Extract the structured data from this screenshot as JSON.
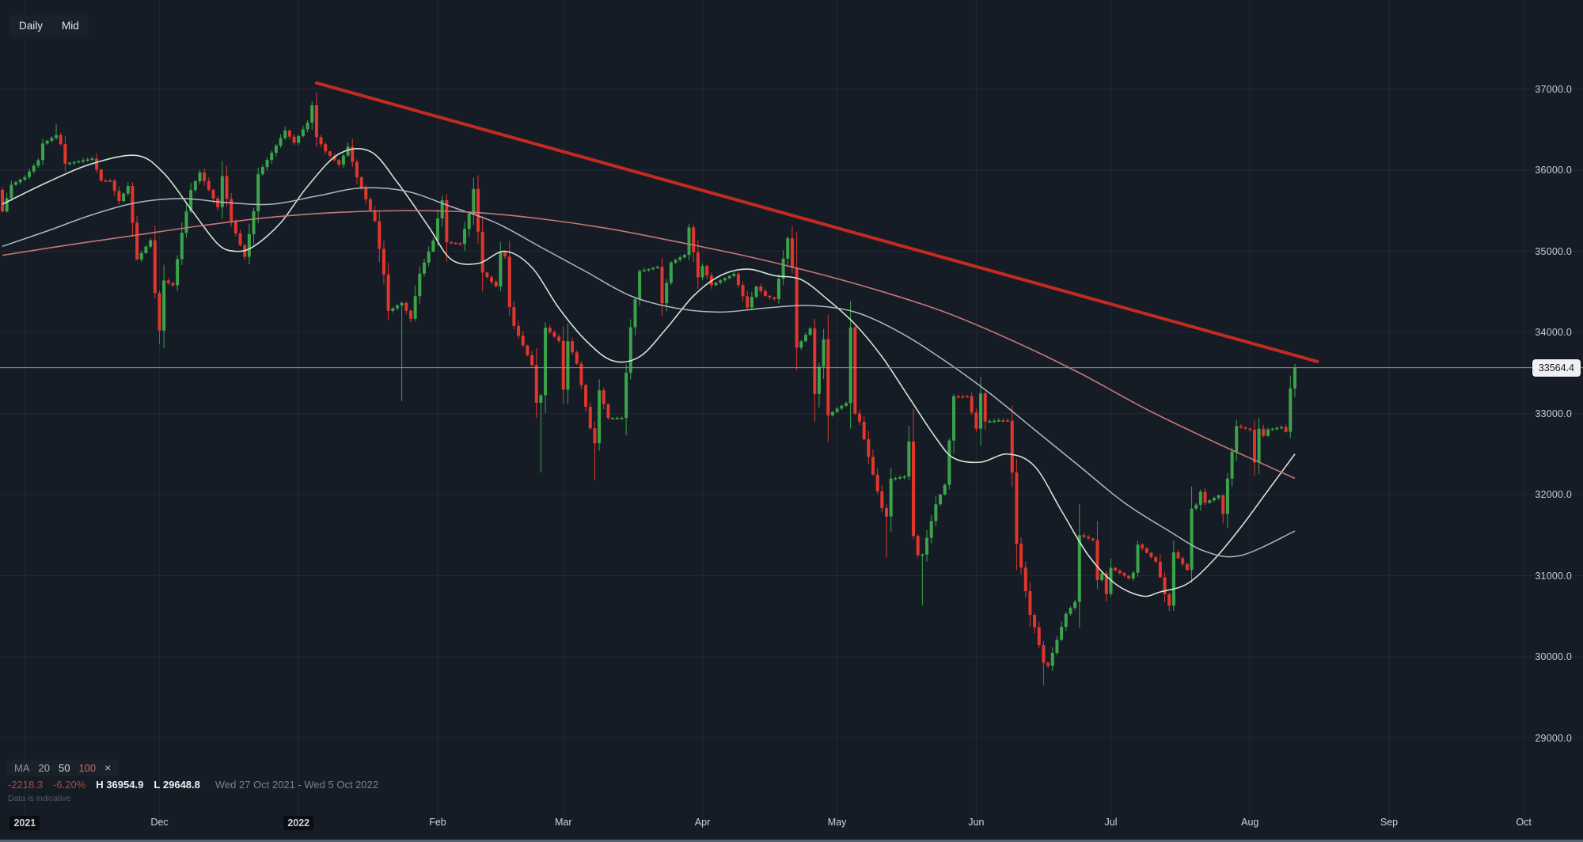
{
  "toolbar": {
    "timeframe": "Daily",
    "price_type": "Mid"
  },
  "legend": {
    "indicator": "MA",
    "periods": [
      {
        "label": "20",
        "color": "#9fbf9f"
      },
      {
        "label": "50",
        "color": "#d9dde2"
      },
      {
        "label": "100",
        "color": "#cb6a62"
      }
    ],
    "close_label": "×"
  },
  "stats": {
    "change": "-2218.3",
    "change_pct": "-6.20%",
    "high_label": "H",
    "high_value": "36954.9",
    "low_label": "L",
    "low_value": "29648.8",
    "date_range": "Wed 27 Oct 2021 - Wed 5 Oct 2022"
  },
  "disclaimer": "Data is indicative",
  "price_axis": {
    "ticks": [
      {
        "label": "37000.0",
        "value": 37000
      },
      {
        "label": "36000.0",
        "value": 36000
      },
      {
        "label": "35000.0",
        "value": 35000
      },
      {
        "label": "34000.0",
        "value": 34000
      },
      {
        "label": "33000.0",
        "value": 33000
      },
      {
        "label": "32000.0",
        "value": 32000
      },
      {
        "label": "31000.0",
        "value": 31000
      },
      {
        "label": "30000.0",
        "value": 30000
      },
      {
        "label": "29000.0",
        "value": 29000
      }
    ],
    "current": {
      "value": 33564.4,
      "label": "33564.4"
    }
  },
  "time_axis": {
    "ticks": [
      {
        "label": "2021",
        "day": 5,
        "year": true
      },
      {
        "label": "Dec",
        "day": 35
      },
      {
        "label": "2022",
        "day": 66,
        "year": true
      },
      {
        "label": "Feb",
        "day": 97
      },
      {
        "label": "Mar",
        "day": 125
      },
      {
        "label": "Apr",
        "day": 156
      },
      {
        "label": "May",
        "day": 186
      },
      {
        "label": "Jun",
        "day": 217
      },
      {
        "label": "Jul",
        "day": 247
      },
      {
        "label": "Aug",
        "day": 278
      },
      {
        "label": "Sep",
        "day": 309
      },
      {
        "label": "Oct",
        "day": 339
      }
    ]
  },
  "chart_data": {
    "type": "candlestick",
    "title": "Wall Street daily candlestick chart",
    "period_shown": "Wed 27 Oct 2021 - Wed 5 Oct 2022",
    "day0_date": "2021-10-27",
    "last_close": 33564.4,
    "session_high": 36954.9,
    "session_low": 29648.8,
    "first_open": 35757,
    "candle_days": 289,
    "price_path": [
      [
        0,
        35491
      ],
      [
        2,
        35820
      ],
      [
        5,
        35914
      ],
      [
        8,
        36124
      ],
      [
        9,
        36328
      ],
      [
        12,
        36432
      ],
      [
        13,
        36320
      ],
      [
        14,
        36080
      ],
      [
        16,
        36100
      ],
      [
        20,
        36142
      ],
      [
        22,
        35871
      ],
      [
        24,
        35870
      ],
      [
        26,
        35619
      ],
      [
        28,
        35804
      ],
      [
        30,
        34899
      ],
      [
        33,
        35136
      ],
      [
        34,
        34484
      ],
      [
        35,
        34022
      ],
      [
        36,
        34640
      ],
      [
        38,
        34580
      ],
      [
        40,
        35227
      ],
      [
        42,
        35755
      ],
      [
        44,
        35971
      ],
      [
        47,
        35651
      ],
      [
        48,
        35544
      ],
      [
        49,
        35927
      ],
      [
        51,
        35365
      ],
      [
        54,
        34932
      ],
      [
        56,
        35493
      ],
      [
        57,
        35950
      ],
      [
        61,
        36302
      ],
      [
        63,
        36488
      ],
      [
        65,
        36338
      ],
      [
        68,
        36586
      ],
      [
        69,
        36800
      ],
      [
        70,
        36407
      ],
      [
        72,
        36232
      ],
      [
        75,
        36069
      ],
      [
        77,
        36290
      ],
      [
        79,
        35912
      ],
      [
        83,
        35369
      ],
      [
        84,
        35029
      ],
      [
        85,
        34715
      ],
      [
        86,
        34265
      ],
      [
        89,
        34364
      ],
      [
        91,
        34168
      ],
      [
        93,
        34725
      ],
      [
        96,
        35132
      ],
      [
        97,
        35405
      ],
      [
        98,
        35629
      ],
      [
        99,
        35111
      ],
      [
        102,
        35090
      ],
      [
        104,
        35462
      ],
      [
        105,
        35768
      ],
      [
        106,
        35241
      ],
      [
        107,
        34738
      ],
      [
        110,
        34566
      ],
      [
        111,
        34989
      ],
      [
        112,
        34934
      ],
      [
        113,
        34312
      ],
      [
        114,
        34079
      ],
      [
        118,
        33597
      ],
      [
        119,
        33131
      ],
      [
        120,
        33224
      ],
      [
        121,
        34058
      ],
      [
        124,
        33893
      ],
      [
        125,
        33294
      ],
      [
        126,
        33891
      ],
      [
        128,
        33615
      ],
      [
        131,
        32817
      ],
      [
        132,
        32632
      ],
      [
        133,
        33286
      ],
      [
        135,
        32944
      ],
      [
        138,
        32945
      ],
      [
        140,
        34063
      ],
      [
        142,
        34755
      ],
      [
        146,
        34807
      ],
      [
        147,
        34358
      ],
      [
        149,
        34861
      ],
      [
        152,
        34956
      ],
      [
        153,
        35294
      ],
      [
        155,
        34678
      ],
      [
        156,
        34818
      ],
      [
        158,
        34583
      ],
      [
        160,
        34641
      ],
      [
        163,
        34721
      ],
      [
        166,
        34308
      ],
      [
        168,
        34565
      ],
      [
        170,
        34451
      ],
      [
        172,
        34411
      ],
      [
        175,
        35160
      ],
      [
        176,
        34793
      ],
      [
        177,
        33811
      ],
      [
        180,
        34049
      ],
      [
        181,
        33240
      ],
      [
        183,
        33916
      ],
      [
        184,
        32977
      ],
      [
        186,
        33061
      ],
      [
        188,
        33128
      ],
      [
        189,
        34061
      ],
      [
        190,
        32998
      ],
      [
        191,
        32899
      ],
      [
        194,
        32246
      ],
      [
        196,
        31834
      ],
      [
        197,
        31730
      ],
      [
        198,
        32197
      ],
      [
        201,
        32223
      ],
      [
        202,
        32654
      ],
      [
        203,
        31490
      ],
      [
        204,
        31253
      ],
      [
        205,
        31261
      ],
      [
        208,
        31880
      ],
      [
        210,
        32120
      ],
      [
        212,
        33213
      ],
      [
        215,
        33212
      ],
      [
        217,
        32813
      ],
      [
        218,
        33248
      ],
      [
        219,
        32900
      ],
      [
        222,
        32916
      ],
      [
        224,
        32911
      ],
      [
        225,
        32272
      ],
      [
        226,
        31393
      ],
      [
        229,
        30517
      ],
      [
        230,
        30365
      ],
      [
        232,
        29927
      ],
      [
        233,
        29889
      ],
      [
        237,
        30530
      ],
      [
        239,
        30677
      ],
      [
        240,
        31500
      ],
      [
        243,
        31438
      ],
      [
        244,
        30946
      ],
      [
        245,
        31029
      ],
      [
        246,
        30775
      ],
      [
        247,
        31097
      ],
      [
        251,
        30967
      ],
      [
        252,
        31037
      ],
      [
        253,
        31384
      ],
      [
        254,
        31338
      ],
      [
        257,
        31173
      ],
      [
        258,
        30981
      ],
      [
        259,
        30772
      ],
      [
        260,
        30630
      ],
      [
        261,
        31288
      ],
      [
        264,
        31072
      ],
      [
        265,
        31827
      ],
      [
        266,
        31875
      ],
      [
        267,
        32036
      ],
      [
        268,
        31899
      ],
      [
        271,
        31990
      ],
      [
        272,
        31761
      ],
      [
        273,
        32197
      ],
      [
        274,
        32529
      ],
      [
        275,
        32845
      ],
      [
        278,
        32798
      ],
      [
        279,
        32396
      ],
      [
        280,
        32812
      ],
      [
        281,
        32726
      ],
      [
        282,
        32803
      ],
      [
        285,
        32832
      ],
      [
        286,
        32774
      ],
      [
        287,
        33309
      ],
      [
        288,
        33564.4
      ]
    ],
    "wick_overrides": [
      {
        "day": 12,
        "high": 36565
      },
      {
        "day": 70,
        "high": 36954.9
      },
      {
        "day": 89,
        "low": 33150
      },
      {
        "day": 120,
        "low": 32272
      },
      {
        "day": 132,
        "low": 32174
      },
      {
        "day": 197,
        "low": 31228
      },
      {
        "day": 205,
        "low": 30635
      },
      {
        "day": 232,
        "low": 29648.8
      },
      {
        "day": 288,
        "high": 33610
      }
    ],
    "moving_averages": [
      {
        "period": 20,
        "color": "#d4e4d6",
        "width": 1.6,
        "points": [
          [
            0,
            35580
          ],
          [
            10,
            35850
          ],
          [
            20,
            36080
          ],
          [
            30,
            36180
          ],
          [
            36,
            35960
          ],
          [
            42,
            35520
          ],
          [
            48,
            35090
          ],
          [
            52,
            35000
          ],
          [
            56,
            35060
          ],
          [
            62,
            35350
          ],
          [
            68,
            35800
          ],
          [
            75,
            36200
          ],
          [
            82,
            36230
          ],
          [
            88,
            35850
          ],
          [
            95,
            35300
          ],
          [
            100,
            34900
          ],
          [
            106,
            34850
          ],
          [
            112,
            35000
          ],
          [
            118,
            34800
          ],
          [
            124,
            34300
          ],
          [
            130,
            33900
          ],
          [
            136,
            33650
          ],
          [
            142,
            33700
          ],
          [
            148,
            34050
          ],
          [
            154,
            34450
          ],
          [
            160,
            34700
          ],
          [
            166,
            34780
          ],
          [
            172,
            34700
          ],
          [
            178,
            34650
          ],
          [
            184,
            34400
          ],
          [
            190,
            34100
          ],
          [
            196,
            33700
          ],
          [
            202,
            33200
          ],
          [
            208,
            32700
          ],
          [
            212,
            32450
          ],
          [
            218,
            32400
          ],
          [
            224,
            32500
          ],
          [
            230,
            32350
          ],
          [
            236,
            31800
          ],
          [
            242,
            31250
          ],
          [
            248,
            30900
          ],
          [
            254,
            30750
          ],
          [
            258,
            30800
          ],
          [
            264,
            30900
          ],
          [
            270,
            31200
          ],
          [
            276,
            31600
          ],
          [
            282,
            32050
          ],
          [
            288,
            32500
          ]
        ]
      },
      {
        "period": 50,
        "color": "#aeb8c2",
        "width": 1.5,
        "points": [
          [
            0,
            35060
          ],
          [
            10,
            35250
          ],
          [
            20,
            35450
          ],
          [
            30,
            35600
          ],
          [
            40,
            35650
          ],
          [
            50,
            35600
          ],
          [
            60,
            35580
          ],
          [
            70,
            35680
          ],
          [
            80,
            35780
          ],
          [
            90,
            35740
          ],
          [
            100,
            35550
          ],
          [
            110,
            35350
          ],
          [
            120,
            35050
          ],
          [
            130,
            34750
          ],
          [
            140,
            34450
          ],
          [
            150,
            34300
          ],
          [
            160,
            34250
          ],
          [
            170,
            34300
          ],
          [
            180,
            34330
          ],
          [
            190,
            34250
          ],
          [
            200,
            34000
          ],
          [
            210,
            33650
          ],
          [
            220,
            33250
          ],
          [
            230,
            32800
          ],
          [
            240,
            32350
          ],
          [
            250,
            31900
          ],
          [
            260,
            31550
          ],
          [
            268,
            31300
          ],
          [
            276,
            31250
          ],
          [
            288,
            31550
          ]
        ]
      },
      {
        "period": 100,
        "color": "#c47878",
        "width": 1.6,
        "points": [
          [
            0,
            34950
          ],
          [
            15,
            35080
          ],
          [
            30,
            35200
          ],
          [
            45,
            35320
          ],
          [
            60,
            35420
          ],
          [
            75,
            35480
          ],
          [
            90,
            35500
          ],
          [
            105,
            35480
          ],
          [
            120,
            35400
          ],
          [
            135,
            35280
          ],
          [
            150,
            35120
          ],
          [
            165,
            34950
          ],
          [
            180,
            34750
          ],
          [
            195,
            34520
          ],
          [
            210,
            34250
          ],
          [
            225,
            33900
          ],
          [
            240,
            33500
          ],
          [
            255,
            33050
          ],
          [
            270,
            32650
          ],
          [
            280,
            32400
          ],
          [
            288,
            32200
          ]
        ]
      }
    ],
    "trendline": {
      "from": [
        70,
        37075
      ],
      "to": [
        293,
        33640
      ],
      "color": "#c52a22",
      "width": 4
    },
    "current_price_line": {
      "price": 33564.4,
      "color": "#8b93a0"
    },
    "y_axis": {
      "min": 28700,
      "max": 37400,
      "gridlines": true
    },
    "colors": {
      "background": "#151c26",
      "grid": "rgba(150,168,190,0.09)",
      "candle_up": "#3ba449",
      "candle_down": "#e0362c"
    }
  }
}
